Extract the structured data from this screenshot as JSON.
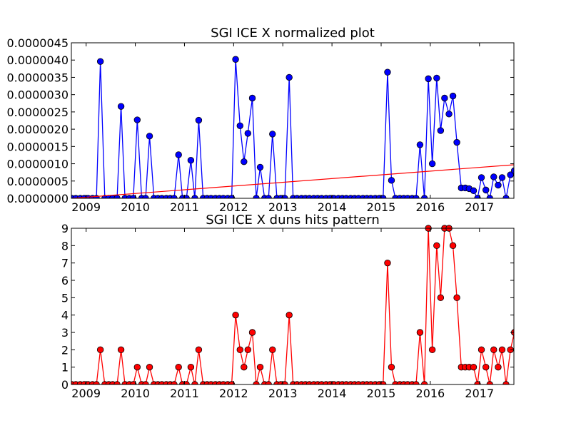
{
  "chart_data": [
    {
      "type": "line",
      "title": "SGI ICE X normalized plot",
      "xlabel": "",
      "ylabel": "",
      "xlim": [
        2008.7,
        2017.7
      ],
      "ylim": [
        0,
        4.5e-06
      ],
      "xtick_labels": [
        "2009",
        "2010",
        "2011",
        "2012",
        "2013",
        "2014",
        "2015",
        "2016",
        "2017"
      ],
      "ytick_labels": [
        "0.0000000",
        "0.0000005",
        "0.0000010",
        "0.0000015",
        "0.0000020",
        "0.0000025",
        "0.0000030",
        "0.0000035",
        "0.0000040",
        "0.0000045"
      ],
      "grid": false,
      "colors": {
        "series": "#0000ff",
        "trend": "#ff0000"
      },
      "series": [
        {
          "points": [
            [
              2008.71,
              0
            ],
            [
              2008.79,
              0
            ],
            [
              2008.88,
              0
            ],
            [
              2008.96,
              0
            ],
            [
              2009.04,
              0
            ],
            [
              2009.13,
              0
            ],
            [
              2009.21,
              0
            ],
            [
              2009.29,
              3.96e-06
            ],
            [
              2009.38,
              0
            ],
            [
              2009.46,
              0
            ],
            [
              2009.54,
              0
            ],
            [
              2009.63,
              0
            ],
            [
              2009.71,
              2.66e-06
            ],
            [
              2009.79,
              0
            ],
            [
              2009.88,
              0
            ],
            [
              2009.96,
              0
            ],
            [
              2010.04,
              2.27e-06
            ],
            [
              2010.13,
              0
            ],
            [
              2010.21,
              0
            ],
            [
              2010.29,
              1.8e-06
            ],
            [
              2010.38,
              0
            ],
            [
              2010.46,
              0
            ],
            [
              2010.54,
              0
            ],
            [
              2010.63,
              0
            ],
            [
              2010.71,
              0
            ],
            [
              2010.79,
              0
            ],
            [
              2010.88,
              1.26e-06
            ],
            [
              2010.96,
              0
            ],
            [
              2011.04,
              0
            ],
            [
              2011.13,
              1.1e-06
            ],
            [
              2011.21,
              0
            ],
            [
              2011.29,
              2.26e-06
            ],
            [
              2011.38,
              0
            ],
            [
              2011.46,
              0
            ],
            [
              2011.54,
              0
            ],
            [
              2011.63,
              0
            ],
            [
              2011.71,
              0
            ],
            [
              2011.79,
              0
            ],
            [
              2011.88,
              0
            ],
            [
              2011.96,
              0
            ],
            [
              2012.04,
              4.02e-06
            ],
            [
              2012.13,
              2.1e-06
            ],
            [
              2012.21,
              1.06e-06
            ],
            [
              2012.29,
              1.88e-06
            ],
            [
              2012.38,
              2.9e-06
            ],
            [
              2012.46,
              0
            ],
            [
              2012.54,
              9e-07
            ],
            [
              2012.63,
              0
            ],
            [
              2012.71,
              0
            ],
            [
              2012.79,
              1.86e-06
            ],
            [
              2012.88,
              0
            ],
            [
              2012.96,
              0
            ],
            [
              2013.04,
              0
            ],
            [
              2013.13,
              3.5e-06
            ],
            [
              2013.21,
              0
            ],
            [
              2013.29,
              0
            ],
            [
              2013.38,
              0
            ],
            [
              2013.46,
              0
            ],
            [
              2013.54,
              0
            ],
            [
              2013.63,
              0
            ],
            [
              2013.71,
              0
            ],
            [
              2013.79,
              0
            ],
            [
              2013.88,
              0
            ],
            [
              2013.96,
              0
            ],
            [
              2014.04,
              0
            ],
            [
              2014.13,
              0
            ],
            [
              2014.21,
              0
            ],
            [
              2014.29,
              0
            ],
            [
              2014.38,
              0
            ],
            [
              2014.46,
              0
            ],
            [
              2014.54,
              0
            ],
            [
              2014.63,
              0
            ],
            [
              2014.71,
              0
            ],
            [
              2014.79,
              0
            ],
            [
              2014.88,
              0
            ],
            [
              2014.96,
              0
            ],
            [
              2015.04,
              0
            ],
            [
              2015.13,
              3.65e-06
            ],
            [
              2015.21,
              5.2e-07
            ],
            [
              2015.29,
              0
            ],
            [
              2015.38,
              0
            ],
            [
              2015.46,
              0
            ],
            [
              2015.54,
              0
            ],
            [
              2015.63,
              0
            ],
            [
              2015.71,
              0
            ],
            [
              2015.79,
              1.55e-06
            ],
            [
              2015.88,
              0
            ],
            [
              2015.96,
              3.46e-06
            ],
            [
              2016.04,
              1e-06
            ],
            [
              2016.13,
              3.48e-06
            ],
            [
              2016.21,
              1.96e-06
            ],
            [
              2016.29,
              2.9e-06
            ],
            [
              2016.38,
              2.44e-06
            ],
            [
              2016.46,
              2.96e-06
            ],
            [
              2016.54,
              1.62e-06
            ],
            [
              2016.63,
              3e-07
            ],
            [
              2016.71,
              3e-07
            ],
            [
              2016.79,
              2.8e-07
            ],
            [
              2016.88,
              2.2e-07
            ],
            [
              2016.96,
              0
            ],
            [
              2017.04,
              6e-07
            ],
            [
              2017.13,
              2.4e-07
            ],
            [
              2017.21,
              0
            ],
            [
              2017.29,
              6.2e-07
            ],
            [
              2017.38,
              3.8e-07
            ],
            [
              2017.46,
              6e-07
            ],
            [
              2017.54,
              0
            ],
            [
              2017.63,
              6.8e-07
            ],
            [
              2017.71,
              8e-07
            ]
          ]
        },
        {
          "kind": "trend",
          "points": [
            [
              2008.71,
              0
            ],
            [
              2017.7,
              9.7e-07
            ]
          ]
        }
      ]
    },
    {
      "type": "line",
      "title": "SGI ICE X duns hits pattern",
      "xlabel": "",
      "ylabel": "",
      "xlim": [
        2008.7,
        2017.7
      ],
      "ylim": [
        0,
        9
      ],
      "xtick_labels": [
        "2009",
        "2010",
        "2011",
        "2012",
        "2013",
        "2014",
        "2015",
        "2016",
        "2017"
      ],
      "ytick_labels": [
        "0",
        "1",
        "2",
        "3",
        "4",
        "5",
        "6",
        "7",
        "8",
        "9"
      ],
      "grid": false,
      "colors": {
        "series": "#ff0000"
      },
      "series": [
        {
          "points": [
            [
              2008.71,
              0
            ],
            [
              2008.79,
              0
            ],
            [
              2008.88,
              0
            ],
            [
              2008.96,
              0
            ],
            [
              2009.04,
              0
            ],
            [
              2009.13,
              0
            ],
            [
              2009.21,
              0
            ],
            [
              2009.29,
              2
            ],
            [
              2009.38,
              0
            ],
            [
              2009.46,
              0
            ],
            [
              2009.54,
              0
            ],
            [
              2009.63,
              0
            ],
            [
              2009.71,
              2
            ],
            [
              2009.79,
              0
            ],
            [
              2009.88,
              0
            ],
            [
              2009.96,
              0
            ],
            [
              2010.04,
              1
            ],
            [
              2010.13,
              0
            ],
            [
              2010.21,
              0
            ],
            [
              2010.29,
              1
            ],
            [
              2010.38,
              0
            ],
            [
              2010.46,
              0
            ],
            [
              2010.54,
              0
            ],
            [
              2010.63,
              0
            ],
            [
              2010.71,
              0
            ],
            [
              2010.79,
              0
            ],
            [
              2010.88,
              1
            ],
            [
              2010.96,
              0
            ],
            [
              2011.04,
              0
            ],
            [
              2011.13,
              1
            ],
            [
              2011.21,
              0
            ],
            [
              2011.29,
              2
            ],
            [
              2011.38,
              0
            ],
            [
              2011.46,
              0
            ],
            [
              2011.54,
              0
            ],
            [
              2011.63,
              0
            ],
            [
              2011.71,
              0
            ],
            [
              2011.79,
              0
            ],
            [
              2011.88,
              0
            ],
            [
              2011.96,
              0
            ],
            [
              2012.04,
              4
            ],
            [
              2012.13,
              2
            ],
            [
              2012.21,
              1
            ],
            [
              2012.29,
              2
            ],
            [
              2012.38,
              3
            ],
            [
              2012.46,
              0
            ],
            [
              2012.54,
              1
            ],
            [
              2012.63,
              0
            ],
            [
              2012.71,
              0
            ],
            [
              2012.79,
              2
            ],
            [
              2012.88,
              0
            ],
            [
              2012.96,
              0
            ],
            [
              2013.04,
              0
            ],
            [
              2013.13,
              4
            ],
            [
              2013.21,
              0
            ],
            [
              2013.29,
              0
            ],
            [
              2013.38,
              0
            ],
            [
              2013.46,
              0
            ],
            [
              2013.54,
              0
            ],
            [
              2013.63,
              0
            ],
            [
              2013.71,
              0
            ],
            [
              2013.79,
              0
            ],
            [
              2013.88,
              0
            ],
            [
              2013.96,
              0
            ],
            [
              2014.04,
              0
            ],
            [
              2014.13,
              0
            ],
            [
              2014.21,
              0
            ],
            [
              2014.29,
              0
            ],
            [
              2014.38,
              0
            ],
            [
              2014.46,
              0
            ],
            [
              2014.54,
              0
            ],
            [
              2014.63,
              0
            ],
            [
              2014.71,
              0
            ],
            [
              2014.79,
              0
            ],
            [
              2014.88,
              0
            ],
            [
              2014.96,
              0
            ],
            [
              2015.04,
              0
            ],
            [
              2015.13,
              7
            ],
            [
              2015.21,
              1
            ],
            [
              2015.29,
              0
            ],
            [
              2015.38,
              0
            ],
            [
              2015.46,
              0
            ],
            [
              2015.54,
              0
            ],
            [
              2015.63,
              0
            ],
            [
              2015.71,
              0
            ],
            [
              2015.79,
              3
            ],
            [
              2015.88,
              0
            ],
            [
              2015.96,
              9
            ],
            [
              2016.04,
              2
            ],
            [
              2016.13,
              8
            ],
            [
              2016.21,
              5
            ],
            [
              2016.29,
              9
            ],
            [
              2016.38,
              9
            ],
            [
              2016.46,
              8
            ],
            [
              2016.54,
              5
            ],
            [
              2016.63,
              1
            ],
            [
              2016.71,
              1
            ],
            [
              2016.79,
              1
            ],
            [
              2016.88,
              1
            ],
            [
              2016.96,
              0
            ],
            [
              2017.04,
              2
            ],
            [
              2017.13,
              1
            ],
            [
              2017.21,
              0
            ],
            [
              2017.29,
              2
            ],
            [
              2017.38,
              1
            ],
            [
              2017.46,
              2
            ],
            [
              2017.54,
              0
            ],
            [
              2017.63,
              2
            ],
            [
              2017.71,
              3
            ]
          ]
        }
      ]
    }
  ]
}
